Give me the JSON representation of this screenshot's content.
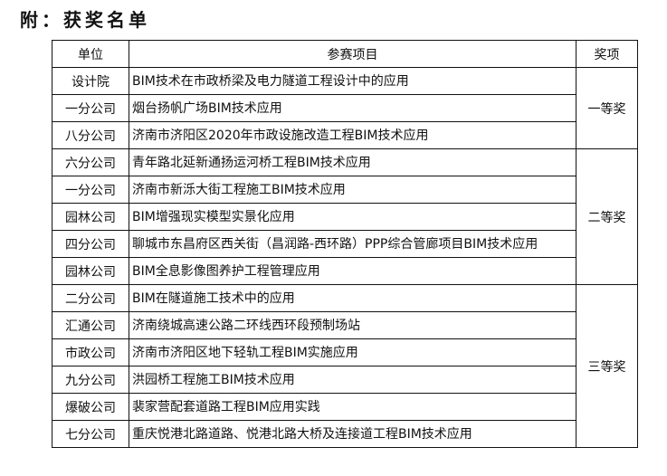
{
  "title": "附：获奖名单",
  "table": {
    "headers": {
      "unit": "单位",
      "project": "参赛项目",
      "award": "奖项"
    },
    "groups": [
      {
        "award": "一等奖",
        "rows": [
          {
            "unit": "设计院",
            "project": "BIM技术在市政桥梁及电力隧道工程设计中的应用"
          },
          {
            "unit": "一分公司",
            "project": "烟台扬帆广场BIM技术应用"
          },
          {
            "unit": "八分公司",
            "project": "济南市济阳区2020年市政设施改造工程BIM技术应用"
          }
        ]
      },
      {
        "award": "二等奖",
        "rows": [
          {
            "unit": "六分公司",
            "project": "青年路北延新通扬运河桥工程BIM技术应用"
          },
          {
            "unit": "一分公司",
            "project": "济南市新泺大街工程施工BIM技术应用"
          },
          {
            "unit": "园林公司",
            "project": "BIM增强现实模型实景化应用"
          },
          {
            "unit": "四分公司",
            "project": "聊城市东昌府区西关街（昌润路-西环路）PPP综合管廊项目BIM技术应用"
          },
          {
            "unit": "园林公司",
            "project": "BIM全息影像图养护工程管理应用"
          }
        ]
      },
      {
        "award": "三等奖",
        "rows": [
          {
            "unit": "二分公司",
            "project": "BIM在隧道施工技术中的应用"
          },
          {
            "unit": "汇通公司",
            "project": "济南绕城高速公路二环线西环段预制场站"
          },
          {
            "unit": "市政公司",
            "project": "济南市济阳区地下轻轨工程BIM实施应用"
          },
          {
            "unit": "九分公司",
            "project": "洪园桥工程施工BIM技术应用"
          },
          {
            "unit": "爆破公司",
            "project": "裴家营配套道路工程BIM应用实践"
          },
          {
            "unit": "七分公司",
            "project": "重庆悦港北路道路、悦港北路大桥及连接道工程BIM技术应用"
          }
        ]
      }
    ]
  }
}
